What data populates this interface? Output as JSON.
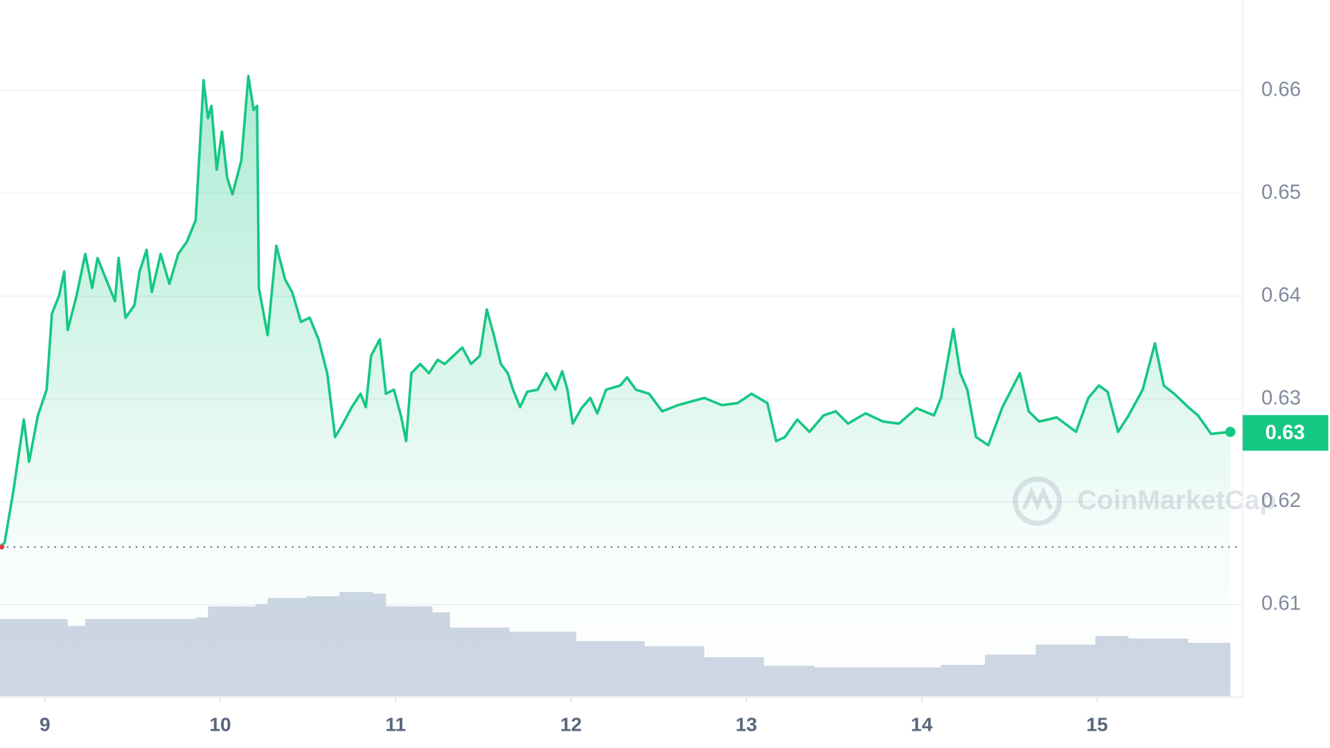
{
  "chart_data": {
    "type": "line",
    "xlim": [
      8.744,
      15.83
    ],
    "xticks": [
      9,
      10,
      11,
      12,
      13,
      14,
      15
    ],
    "ylim": [
      0.601,
      0.6688
    ],
    "yticks": [
      0.61,
      0.62,
      0.63,
      0.64,
      0.65,
      0.66
    ],
    "grid": true,
    "baseline": 0.6156,
    "current_price": 0.6267,
    "current_price_label": "0.63",
    "watermark": "CoinMarketCap",
    "price": {
      "color": "#16c784",
      "x": [
        8.74,
        8.77,
        8.82,
        8.88,
        8.91,
        8.96,
        9.01,
        9.04,
        9.08,
        9.11,
        9.13,
        9.18,
        9.23,
        9.27,
        9.3,
        9.35,
        9.4,
        9.42,
        9.46,
        9.51,
        9.54,
        9.58,
        9.61,
        9.66,
        9.71,
        9.76,
        9.81,
        9.86,
        9.905,
        9.93,
        9.95,
        9.98,
        10.01,
        10.04,
        10.07,
        10.12,
        10.16,
        10.19,
        10.21,
        10.22,
        10.27,
        10.32,
        10.37,
        10.41,
        10.46,
        10.51,
        10.56,
        10.61,
        10.655,
        10.7,
        10.75,
        10.8,
        10.83,
        10.86,
        10.91,
        10.945,
        10.99,
        11.03,
        11.06,
        11.09,
        11.14,
        11.19,
        11.24,
        11.28,
        11.33,
        11.38,
        11.43,
        11.48,
        11.52,
        11.56,
        11.6,
        11.64,
        11.67,
        11.71,
        11.75,
        11.81,
        11.86,
        11.91,
        11.95,
        11.98,
        12.01,
        12.06,
        12.11,
        12.15,
        12.2,
        12.28,
        12.32,
        12.37,
        12.445,
        12.52,
        12.61,
        12.76,
        12.86,
        12.95,
        13.03,
        13.12,
        13.17,
        13.22,
        13.29,
        13.36,
        13.44,
        13.51,
        13.58,
        13.68,
        13.78,
        13.87,
        13.97,
        14.07,
        14.11,
        14.18,
        14.22,
        14.26,
        14.31,
        14.38,
        14.46,
        14.56,
        14.61,
        14.67,
        14.77,
        14.88,
        14.95,
        15.01,
        15.06,
        15.12,
        15.18,
        15.26,
        15.33,
        15.38,
        15.44,
        15.52,
        15.575,
        15.65,
        15.76
      ],
      "values": [
        0.6156,
        0.616,
        0.621,
        0.628,
        0.6239,
        0.6284,
        0.6309,
        0.6383,
        0.64,
        0.6424,
        0.6367,
        0.64,
        0.6441,
        0.6408,
        0.6437,
        0.6416,
        0.6395,
        0.6437,
        0.6379,
        0.6391,
        0.6424,
        0.6445,
        0.6404,
        0.6441,
        0.6412,
        0.6441,
        0.6453,
        0.6474,
        0.661,
        0.6573,
        0.6585,
        0.6523,
        0.656,
        0.6515,
        0.6499,
        0.6532,
        0.6614,
        0.6581,
        0.6585,
        0.6408,
        0.6362,
        0.6449,
        0.6416,
        0.6404,
        0.6375,
        0.6379,
        0.6358,
        0.6325,
        0.6263,
        0.6276,
        0.6292,
        0.6305,
        0.6292,
        0.6342,
        0.6358,
        0.6305,
        0.6309,
        0.6284,
        0.6259,
        0.6325,
        0.6334,
        0.6325,
        0.6338,
        0.6334,
        0.6342,
        0.635,
        0.6334,
        0.6342,
        0.6387,
        0.6362,
        0.6334,
        0.6325,
        0.6309,
        0.6292,
        0.6307,
        0.6309,
        0.6325,
        0.6309,
        0.6327,
        0.6309,
        0.6276,
        0.6291,
        0.6301,
        0.6286,
        0.6309,
        0.6313,
        0.6321,
        0.6309,
        0.6305,
        0.6288,
        0.6294,
        0.6301,
        0.6294,
        0.6296,
        0.6305,
        0.6296,
        0.6259,
        0.6263,
        0.628,
        0.6268,
        0.6284,
        0.6288,
        0.6276,
        0.6286,
        0.6278,
        0.6276,
        0.6291,
        0.6284,
        0.6301,
        0.6368,
        0.6325,
        0.6309,
        0.6263,
        0.6255,
        0.6292,
        0.6325,
        0.6288,
        0.6278,
        0.6282,
        0.6268,
        0.6301,
        0.6313,
        0.6307,
        0.6268,
        0.6284,
        0.6309,
        0.6354,
        0.6313,
        0.6305,
        0.6292,
        0.6284,
        0.6266,
        0.6268
      ]
    },
    "volume": {
      "color": "#cfd6e4",
      "vlim": [
        0,
        130
      ],
      "x": [
        8.74,
        9.13,
        9.23,
        9.86,
        9.93,
        10.2,
        10.27,
        10.49,
        10.68,
        10.87,
        10.945,
        11.21,
        11.31,
        11.65,
        12.03,
        12.42,
        12.76,
        13.1,
        13.39,
        14.11,
        14.36,
        14.65,
        14.99,
        15.18,
        15.52,
        15.76
      ],
      "values": [
        92,
        84,
        92,
        94,
        107,
        110,
        117,
        119,
        124,
        122,
        107,
        100,
        82,
        77,
        66,
        60,
        47,
        37,
        35,
        38,
        50,
        62,
        72,
        69,
        64,
        62
      ]
    }
  }
}
